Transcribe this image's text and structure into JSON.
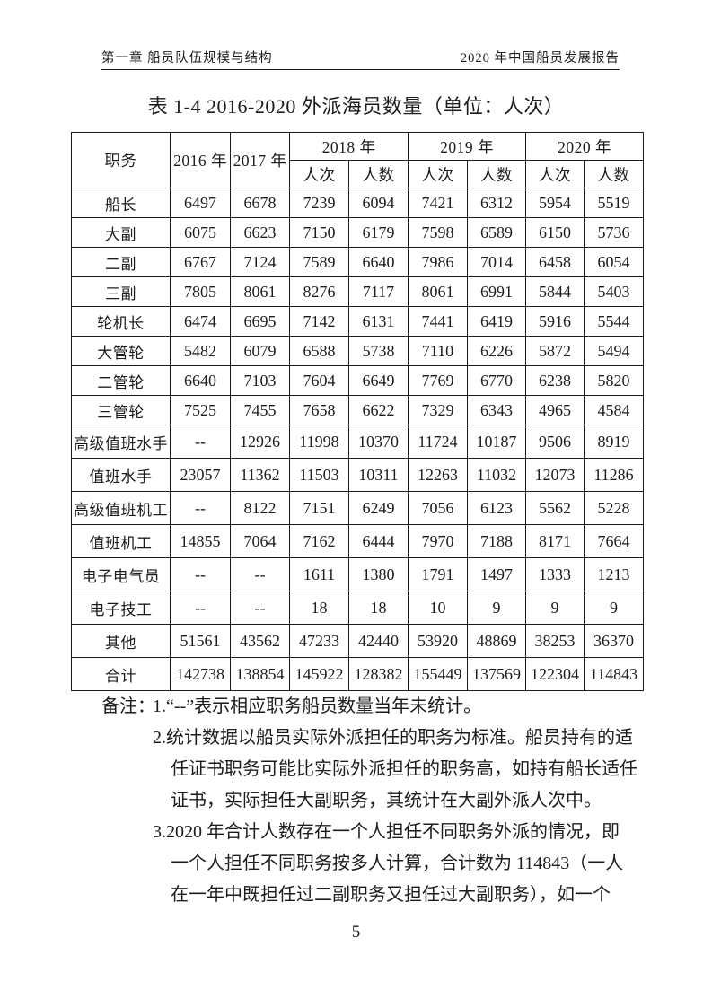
{
  "page": {
    "header_left": "第一章 船员队伍规模与结构",
    "header_right": "2020 年中国船员发展报告",
    "title": "表 1-4 2016-2020 外派海员数量（单位：人次）",
    "page_number": "5"
  },
  "table": {
    "corner_label": "职务",
    "years_single": [
      "2016 年",
      "2017 年"
    ],
    "years_grouped": [
      "2018 年",
      "2019 年",
      "2020 年"
    ],
    "sub_headers": [
      "人次",
      "人数"
    ],
    "rows": [
      {
        "label": "船长",
        "values": [
          "6497",
          "6678",
          "7239",
          "6094",
          "7421",
          "6312",
          "5954",
          "5519"
        ]
      },
      {
        "label": "大副",
        "values": [
          "6075",
          "6623",
          "7150",
          "6179",
          "7598",
          "6589",
          "6150",
          "5736"
        ]
      },
      {
        "label": "二副",
        "values": [
          "6767",
          "7124",
          "7589",
          "6640",
          "7986",
          "7014",
          "6458",
          "6054"
        ]
      },
      {
        "label": "三副",
        "values": [
          "7805",
          "8061",
          "8276",
          "7117",
          "8061",
          "6991",
          "5844",
          "5403"
        ]
      },
      {
        "label": "轮机长",
        "values": [
          "6474",
          "6695",
          "7142",
          "6131",
          "7441",
          "6419",
          "5916",
          "5544"
        ]
      },
      {
        "label": "大管轮",
        "values": [
          "5482",
          "6079",
          "6588",
          "5738",
          "7110",
          "6226",
          "5872",
          "5494"
        ]
      },
      {
        "label": "二管轮",
        "values": [
          "6640",
          "7103",
          "7604",
          "6649",
          "7769",
          "6770",
          "6238",
          "5820"
        ]
      },
      {
        "label": "三管轮",
        "values": [
          "7525",
          "7455",
          "7658",
          "6622",
          "7329",
          "6343",
          "4965",
          "4584"
        ]
      },
      {
        "label": "高级值班水手",
        "values": [
          "--",
          "12926",
          "11998",
          "10370",
          "11724",
          "10187",
          "9506",
          "8919"
        ]
      },
      {
        "label": "值班水手",
        "values": [
          "23057",
          "11362",
          "11503",
          "10311",
          "12263",
          "11032",
          "12073",
          "11286"
        ]
      },
      {
        "label": "高级值班机工",
        "values": [
          "--",
          "8122",
          "7151",
          "6249",
          "7056",
          "6123",
          "5562",
          "5228"
        ]
      },
      {
        "label": "值班机工",
        "values": [
          "14855",
          "7064",
          "7162",
          "6444",
          "7970",
          "7188",
          "8171",
          "7664"
        ]
      },
      {
        "label": "电子电气员",
        "values": [
          "--",
          "--",
          "1611",
          "1380",
          "1791",
          "1497",
          "1333",
          "1213"
        ]
      },
      {
        "label": "电子技工",
        "values": [
          "--",
          "--",
          "18",
          "18",
          "10",
          "9",
          "9",
          "9"
        ]
      },
      {
        "label": "其他",
        "values": [
          "51561",
          "43562",
          "47233",
          "42440",
          "53920",
          "48869",
          "38253",
          "36370"
        ]
      },
      {
        "label": "合计",
        "values": [
          "142738",
          "138854",
          "145922",
          "128382",
          "155449",
          "137569",
          "122304",
          "114843"
        ]
      }
    ]
  },
  "notes": {
    "label": "备注：",
    "items": [
      {
        "number": "1.",
        "lines": [
          "“--”表示相应职务船员数量当年未统计。"
        ]
      },
      {
        "number": "2.",
        "lines": [
          "统计数据以船员实际外派担任的职务为标准。船员持有的适",
          "任证书职务可能比实际外派担任的职务高，如持有船长适任",
          "证书，实际担任大副职务，其统计在大副外派人次中。"
        ]
      },
      {
        "number": "3.",
        "lines": [
          "2020 年合计人数存在一个人担任不同职务外派的情况，即",
          "一个人担任不同职务按多人计算，合计数为 114843（一人",
          "在一年中既担任过二副职务又担任过大副职务），如一个"
        ]
      }
    ]
  }
}
